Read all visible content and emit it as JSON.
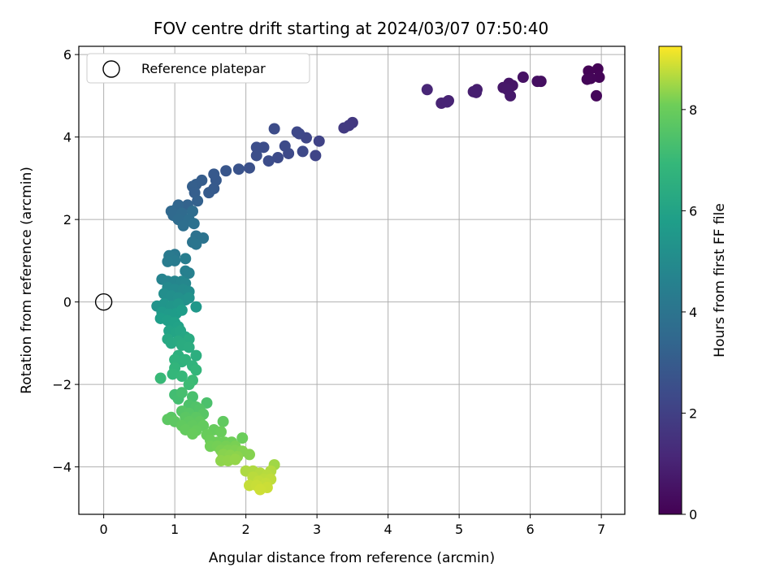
{
  "chart_data": {
    "type": "scatter",
    "title": "FOV centre drift starting at 2024/03/07 07:50:40",
    "xlabel": "Angular distance from reference (arcmin)",
    "ylabel": "Rotation from reference (arcmin)",
    "xlim": [
      -0.35,
      7.33
    ],
    "ylim": [
      -5.15,
      6.2
    ],
    "xticks": [
      0,
      1,
      2,
      3,
      4,
      5,
      6,
      7
    ],
    "yticks": [
      -4,
      -2,
      0,
      2,
      4,
      6
    ],
    "grid": true,
    "legend": {
      "placement": "top-left",
      "entries": [
        "Reference platepar"
      ]
    },
    "reference_point": {
      "x": 0,
      "y": 0,
      "label": "Reference platepar",
      "marker": "open-circle"
    },
    "colorbar": {
      "label": "Hours from first FF file",
      "colormap": "viridis",
      "range": [
        0,
        9.25
      ],
      "ticks": [
        0,
        2,
        4,
        6,
        8
      ]
    },
    "points": [
      {
        "x": 6.95,
        "y": 5.65,
        "c": 0.05
      },
      {
        "x": 6.82,
        "y": 5.6,
        "c": 0.08
      },
      {
        "x": 6.97,
        "y": 5.45,
        "c": 0.1
      },
      {
        "x": 6.85,
        "y": 5.42,
        "c": 0.12
      },
      {
        "x": 6.8,
        "y": 5.4,
        "c": 0.14
      },
      {
        "x": 6.93,
        "y": 5.0,
        "c": 0.18
      },
      {
        "x": 6.15,
        "y": 5.35,
        "c": 0.4
      },
      {
        "x": 6.1,
        "y": 5.35,
        "c": 0.42
      },
      {
        "x": 5.9,
        "y": 5.45,
        "c": 0.5
      },
      {
        "x": 5.7,
        "y": 5.3,
        "c": 0.6
      },
      {
        "x": 5.75,
        "y": 5.25,
        "c": 0.62
      },
      {
        "x": 5.62,
        "y": 5.2,
        "c": 0.65
      },
      {
        "x": 5.68,
        "y": 5.15,
        "c": 0.68
      },
      {
        "x": 5.72,
        "y": 5.0,
        "c": 0.7
      },
      {
        "x": 5.25,
        "y": 5.15,
        "c": 0.85
      },
      {
        "x": 5.2,
        "y": 5.1,
        "c": 0.88
      },
      {
        "x": 5.24,
        "y": 5.08,
        "c": 0.9
      },
      {
        "x": 4.85,
        "y": 4.88,
        "c": 1.0
      },
      {
        "x": 4.75,
        "y": 4.82,
        "c": 1.03
      },
      {
        "x": 4.83,
        "y": 4.85,
        "c": 1.05
      },
      {
        "x": 4.55,
        "y": 5.15,
        "c": 1.1
      },
      {
        "x": 3.5,
        "y": 4.35,
        "c": 1.7
      },
      {
        "x": 3.45,
        "y": 4.28,
        "c": 1.75
      },
      {
        "x": 3.38,
        "y": 4.22,
        "c": 1.8
      },
      {
        "x": 3.03,
        "y": 3.9,
        "c": 2.1
      },
      {
        "x": 2.98,
        "y": 3.55,
        "c": 2.15
      },
      {
        "x": 2.85,
        "y": 3.98,
        "c": 2.2
      },
      {
        "x": 2.75,
        "y": 4.08,
        "c": 2.25
      },
      {
        "x": 2.72,
        "y": 4.12,
        "c": 2.28
      },
      {
        "x": 2.8,
        "y": 3.65,
        "c": 2.3
      },
      {
        "x": 2.6,
        "y": 3.6,
        "c": 2.35
      },
      {
        "x": 2.55,
        "y": 3.78,
        "c": 2.38
      },
      {
        "x": 2.45,
        "y": 3.5,
        "c": 2.4
      },
      {
        "x": 2.4,
        "y": 4.2,
        "c": 2.42
      },
      {
        "x": 2.32,
        "y": 3.42,
        "c": 2.45
      },
      {
        "x": 2.25,
        "y": 3.75,
        "c": 2.48
      },
      {
        "x": 2.15,
        "y": 3.75,
        "c": 2.5
      },
      {
        "x": 2.15,
        "y": 3.55,
        "c": 2.52
      },
      {
        "x": 2.05,
        "y": 3.25,
        "c": 2.6
      },
      {
        "x": 1.9,
        "y": 3.22,
        "c": 2.7
      },
      {
        "x": 1.72,
        "y": 3.18,
        "c": 2.8
      },
      {
        "x": 1.58,
        "y": 2.95,
        "c": 2.9
      },
      {
        "x": 1.55,
        "y": 3.1,
        "c": 2.92
      },
      {
        "x": 1.55,
        "y": 2.75,
        "c": 2.95
      },
      {
        "x": 1.48,
        "y": 2.65,
        "c": 3.0
      },
      {
        "x": 1.38,
        "y": 2.95,
        "c": 3.05
      },
      {
        "x": 1.3,
        "y": 2.85,
        "c": 3.1
      },
      {
        "x": 1.25,
        "y": 2.8,
        "c": 3.12
      },
      {
        "x": 1.28,
        "y": 2.65,
        "c": 3.15
      },
      {
        "x": 1.32,
        "y": 2.45,
        "c": 3.2
      },
      {
        "x": 1.18,
        "y": 2.35,
        "c": 3.3
      },
      {
        "x": 1.05,
        "y": 2.35,
        "c": 3.4
      },
      {
        "x": 1.02,
        "y": 2.25,
        "c": 3.45
      },
      {
        "x": 0.95,
        "y": 2.2,
        "c": 3.5
      },
      {
        "x": 0.98,
        "y": 2.1,
        "c": 3.55
      },
      {
        "x": 1.1,
        "y": 2.15,
        "c": 3.6
      },
      {
        "x": 1.05,
        "y": 2.0,
        "c": 3.65
      },
      {
        "x": 1.25,
        "y": 2.2,
        "c": 3.7
      },
      {
        "x": 1.2,
        "y": 2.0,
        "c": 3.75
      },
      {
        "x": 1.12,
        "y": 1.85,
        "c": 3.8
      },
      {
        "x": 1.27,
        "y": 1.9,
        "c": 3.85
      },
      {
        "x": 1.3,
        "y": 1.6,
        "c": 3.9
      },
      {
        "x": 1.4,
        "y": 1.55,
        "c": 3.95
      },
      {
        "x": 1.25,
        "y": 1.45,
        "c": 4.0
      },
      {
        "x": 1.3,
        "y": 1.4,
        "c": 4.05
      },
      {
        "x": 1.0,
        "y": 1.15,
        "c": 4.2
      },
      {
        "x": 0.92,
        "y": 1.12,
        "c": 4.25
      },
      {
        "x": 1.0,
        "y": 1.0,
        "c": 4.3
      },
      {
        "x": 0.9,
        "y": 0.98,
        "c": 4.35
      },
      {
        "x": 1.15,
        "y": 1.05,
        "c": 4.4
      },
      {
        "x": 1.15,
        "y": 0.75,
        "c": 4.5
      },
      {
        "x": 1.2,
        "y": 0.7,
        "c": 4.55
      },
      {
        "x": 0.82,
        "y": 0.55,
        "c": 4.65
      },
      {
        "x": 0.9,
        "y": 0.5,
        "c": 4.7
      },
      {
        "x": 1.0,
        "y": 0.5,
        "c": 4.75
      },
      {
        "x": 1.1,
        "y": 0.5,
        "c": 4.8
      },
      {
        "x": 1.15,
        "y": 0.45,
        "c": 4.85
      },
      {
        "x": 0.9,
        "y": 0.35,
        "c": 4.9
      },
      {
        "x": 1.0,
        "y": 0.3,
        "c": 4.95
      },
      {
        "x": 1.12,
        "y": 0.3,
        "c": 5.0
      },
      {
        "x": 1.2,
        "y": 0.25,
        "c": 5.05
      },
      {
        "x": 0.85,
        "y": 0.2,
        "c": 5.1
      },
      {
        "x": 0.95,
        "y": 0.15,
        "c": 5.15
      },
      {
        "x": 1.05,
        "y": 0.1,
        "c": 5.2
      },
      {
        "x": 1.15,
        "y": 0.05,
        "c": 5.25
      },
      {
        "x": 1.2,
        "y": 0.1,
        "c": 5.3
      },
      {
        "x": 0.75,
        "y": -0.1,
        "c": 5.35
      },
      {
        "x": 0.85,
        "y": -0.05,
        "c": 5.4
      },
      {
        "x": 0.95,
        "y": -0.1,
        "c": 5.45
      },
      {
        "x": 1.05,
        "y": -0.05,
        "c": 5.5
      },
      {
        "x": 1.3,
        "y": -0.12,
        "c": 5.55
      },
      {
        "x": 0.82,
        "y": -0.25,
        "c": 5.6
      },
      {
        "x": 0.92,
        "y": -0.3,
        "c": 5.65
      },
      {
        "x": 1.02,
        "y": -0.28,
        "c": 5.7
      },
      {
        "x": 1.1,
        "y": -0.2,
        "c": 5.75
      },
      {
        "x": 0.8,
        "y": -0.4,
        "c": 5.8
      },
      {
        "x": 0.9,
        "y": -0.45,
        "c": 5.85
      },
      {
        "x": 1.0,
        "y": -0.5,
        "c": 5.9
      },
      {
        "x": 1.05,
        "y": -0.6,
        "c": 5.95
      },
      {
        "x": 0.92,
        "y": -0.7,
        "c": 6.0
      },
      {
        "x": 1.02,
        "y": -0.75,
        "c": 6.05
      },
      {
        "x": 1.08,
        "y": -0.7,
        "c": 6.1
      },
      {
        "x": 1.15,
        "y": -0.85,
        "c": 6.15
      },
      {
        "x": 0.9,
        "y": -0.9,
        "c": 6.2
      },
      {
        "x": 0.95,
        "y": -1.0,
        "c": 6.25
      },
      {
        "x": 1.05,
        "y": -0.95,
        "c": 6.3
      },
      {
        "x": 1.2,
        "y": -0.9,
        "c": 6.35
      },
      {
        "x": 1.1,
        "y": -1.05,
        "c": 6.4
      },
      {
        "x": 1.2,
        "y": -1.1,
        "c": 6.45
      },
      {
        "x": 1.3,
        "y": -1.3,
        "c": 6.5
      },
      {
        "x": 1.05,
        "y": -1.3,
        "c": 6.55
      },
      {
        "x": 1.1,
        "y": -1.45,
        "c": 6.6
      },
      {
        "x": 1.0,
        "y": -1.4,
        "c": 6.65
      },
      {
        "x": 1.15,
        "y": -1.4,
        "c": 6.7
      },
      {
        "x": 1.25,
        "y": -1.55,
        "c": 6.75
      },
      {
        "x": 1.0,
        "y": -1.6,
        "c": 6.8
      },
      {
        "x": 1.3,
        "y": -1.65,
        "c": 6.85
      },
      {
        "x": 0.97,
        "y": -1.75,
        "c": 6.9
      },
      {
        "x": 1.1,
        "y": -1.8,
        "c": 6.95
      },
      {
        "x": 0.8,
        "y": -1.85,
        "c": 7.0
      },
      {
        "x": 1.25,
        "y": -1.9,
        "c": 7.05
      },
      {
        "x": 1.2,
        "y": -2.0,
        "c": 7.1
      },
      {
        "x": 1.0,
        "y": -2.25,
        "c": 7.2
      },
      {
        "x": 1.05,
        "y": -2.35,
        "c": 7.25
      },
      {
        "x": 1.1,
        "y": -2.2,
        "c": 7.3
      },
      {
        "x": 1.25,
        "y": -2.3,
        "c": 7.35
      },
      {
        "x": 1.45,
        "y": -2.45,
        "c": 7.4
      },
      {
        "x": 1.2,
        "y": -2.5,
        "c": 7.45
      },
      {
        "x": 1.3,
        "y": -2.55,
        "c": 7.5
      },
      {
        "x": 1.35,
        "y": -2.6,
        "c": 7.55
      },
      {
        "x": 1.1,
        "y": -2.65,
        "c": 7.6
      },
      {
        "x": 1.2,
        "y": -2.7,
        "c": 7.62
      },
      {
        "x": 1.4,
        "y": -2.72,
        "c": 7.65
      },
      {
        "x": 0.95,
        "y": -2.8,
        "c": 7.68
      },
      {
        "x": 1.15,
        "y": -2.8,
        "c": 7.7
      },
      {
        "x": 1.3,
        "y": -2.8,
        "c": 7.72
      },
      {
        "x": 0.9,
        "y": -2.85,
        "c": 7.74
      },
      {
        "x": 1.0,
        "y": -2.9,
        "c": 7.76
      },
      {
        "x": 1.2,
        "y": -2.9,
        "c": 7.78
      },
      {
        "x": 1.35,
        "y": -2.9,
        "c": 7.8
      },
      {
        "x": 1.68,
        "y": -2.9,
        "c": 7.82
      },
      {
        "x": 1.1,
        "y": -3.0,
        "c": 7.84
      },
      {
        "x": 1.25,
        "y": -3.0,
        "c": 7.86
      },
      {
        "x": 1.4,
        "y": -3.0,
        "c": 7.88
      },
      {
        "x": 1.15,
        "y": -3.1,
        "c": 7.9
      },
      {
        "x": 1.3,
        "y": -3.12,
        "c": 7.92
      },
      {
        "x": 1.55,
        "y": -3.1,
        "c": 7.94
      },
      {
        "x": 1.25,
        "y": -3.2,
        "c": 7.96
      },
      {
        "x": 1.45,
        "y": -3.22,
        "c": 7.98
      },
      {
        "x": 1.65,
        "y": -3.15,
        "c": 8.0
      },
      {
        "x": 1.95,
        "y": -3.3,
        "c": 8.02
      },
      {
        "x": 1.5,
        "y": -3.35,
        "c": 8.04
      },
      {
        "x": 1.6,
        "y": -3.4,
        "c": 8.06
      },
      {
        "x": 1.7,
        "y": -3.4,
        "c": 8.08
      },
      {
        "x": 1.8,
        "y": -3.4,
        "c": 8.1
      },
      {
        "x": 1.5,
        "y": -3.5,
        "c": 8.12
      },
      {
        "x": 1.6,
        "y": -3.5,
        "c": 8.14
      },
      {
        "x": 1.72,
        "y": -3.5,
        "c": 8.16
      },
      {
        "x": 1.85,
        "y": -3.5,
        "c": 8.18
      },
      {
        "x": 1.65,
        "y": -3.6,
        "c": 8.2
      },
      {
        "x": 1.75,
        "y": -3.6,
        "c": 8.22
      },
      {
        "x": 1.85,
        "y": -3.6,
        "c": 8.24
      },
      {
        "x": 1.95,
        "y": -3.62,
        "c": 8.26
      },
      {
        "x": 2.05,
        "y": -3.7,
        "c": 8.28
      },
      {
        "x": 1.68,
        "y": -3.7,
        "c": 8.3
      },
      {
        "x": 1.78,
        "y": -3.72,
        "c": 8.32
      },
      {
        "x": 1.88,
        "y": -3.75,
        "c": 8.34
      },
      {
        "x": 1.65,
        "y": -3.85,
        "c": 8.36
      },
      {
        "x": 1.75,
        "y": -3.85,
        "c": 8.38
      },
      {
        "x": 1.85,
        "y": -3.82,
        "c": 8.4
      },
      {
        "x": 2.4,
        "y": -3.95,
        "c": 8.5
      },
      {
        "x": 2.0,
        "y": -4.1,
        "c": 8.6
      },
      {
        "x": 2.1,
        "y": -4.1,
        "c": 8.62
      },
      {
        "x": 2.35,
        "y": -4.1,
        "c": 8.64
      },
      {
        "x": 2.2,
        "y": -4.15,
        "c": 8.66
      },
      {
        "x": 2.3,
        "y": -4.2,
        "c": 8.68
      },
      {
        "x": 2.1,
        "y": -4.25,
        "c": 8.7
      },
      {
        "x": 2.25,
        "y": -4.3,
        "c": 8.72
      },
      {
        "x": 2.35,
        "y": -4.3,
        "c": 8.74
      },
      {
        "x": 2.18,
        "y": -4.35,
        "c": 8.76
      },
      {
        "x": 2.28,
        "y": -4.4,
        "c": 8.78
      },
      {
        "x": 2.05,
        "y": -4.45,
        "c": 8.8
      },
      {
        "x": 2.15,
        "y": -4.45,
        "c": 8.82
      },
      {
        "x": 2.3,
        "y": -4.5,
        "c": 8.84
      },
      {
        "x": 2.2,
        "y": -4.55,
        "c": 8.86
      }
    ]
  }
}
